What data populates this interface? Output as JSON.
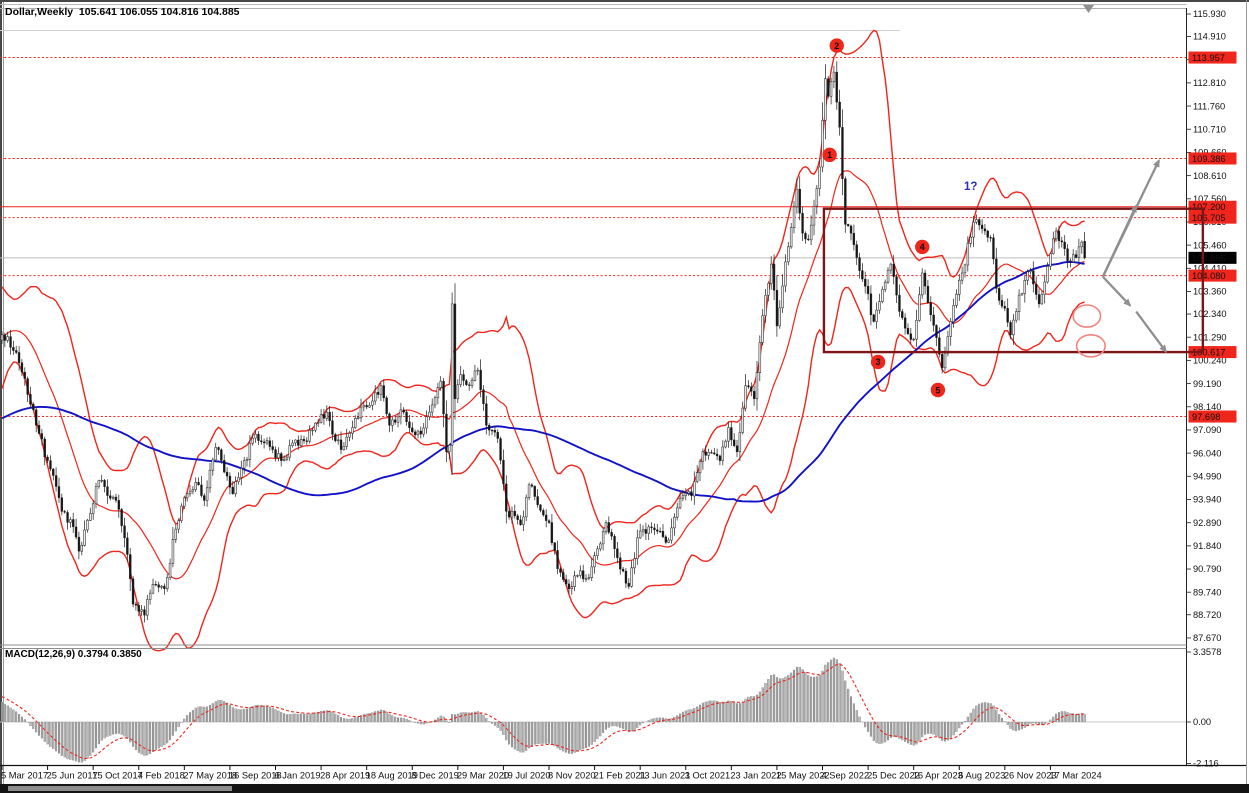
{
  "window": {
    "title_overlay": "Dollar,Weekly  105.641 106.055 104.816 104.885",
    "symbol": "Dollar",
    "timeframe": "Weekly",
    "last_ohlc_text": {
      "open": "105.641",
      "high": "106.055",
      "low": "104.816",
      "close": "104.885"
    }
  },
  "colors": {
    "red": "#f0251b",
    "dark_red": "#7d1416",
    "blue": "#1212c8",
    "gray_arrow": "#8f8f8f",
    "badge_black": "#000000",
    "hist_gray": "#6f6f6f",
    "current_price_line": "#bdbdbd",
    "ellipse_red": "#f4837e"
  },
  "chart_data": {
    "type": "candlestick",
    "title": "Dollar,Weekly",
    "main": {
      "price_axis_range": [
        87.67,
        115.93
      ],
      "price_axis_ticks": [
        "115.930",
        "114.910",
        "113.860",
        "112.810",
        "111.760",
        "110.710",
        "109.660",
        "108.610",
        "107.560",
        "106.510",
        "105.460",
        "104.410",
        "103.360",
        "102.340",
        "101.290",
        "100.240",
        "99.190",
        "98.140",
        "97.090",
        "96.040",
        "94.990",
        "93.940",
        "92.890",
        "91.840",
        "90.790",
        "89.740",
        "88.720",
        "87.670"
      ],
      "date_axis": [
        {
          "week": 0,
          "label": "5 Mar 2017"
        },
        {
          "week": 16,
          "label": "25 Jun 2017"
        },
        {
          "week": 32,
          "label": "15 Oct 2017"
        },
        {
          "week": 48,
          "label": "4 Feb 2018"
        },
        {
          "week": 64,
          "label": "27 May 2018"
        },
        {
          "week": 80,
          "label": "16 Sep 2018"
        },
        {
          "week": 96,
          "label": "6 Jan 2019"
        },
        {
          "week": 112,
          "label": "28 Apr 2019"
        },
        {
          "week": 128,
          "label": "18 Aug 2019"
        },
        {
          "week": 144,
          "label": "8 Dec 2019"
        },
        {
          "week": 160,
          "label": "29 Mar 2020"
        },
        {
          "week": 176,
          "label": "19 Jul 2020"
        },
        {
          "week": 192,
          "label": "8 Nov 2020"
        },
        {
          "week": 208,
          "label": "21 Feb 2021"
        },
        {
          "week": 224,
          "label": "13 Jun 2021"
        },
        {
          "week": 240,
          "label": "3 Oct 2021"
        },
        {
          "week": 256,
          "label": "23 Jan 2022"
        },
        {
          "week": 272,
          "label": "15 May 2022"
        },
        {
          "week": 288,
          "label": "4 Sep 2022"
        },
        {
          "week": 304,
          "label": "25 Dec 2022"
        },
        {
          "week": 320,
          "label": "16 Apr 2023"
        },
        {
          "week": 336,
          "label": "6 Aug 2023"
        },
        {
          "week": 352,
          "label": "26 Nov 2023"
        },
        {
          "week": 368,
          "label": "17 Mar 2024"
        }
      ],
      "weeks_total": 380,
      "price_path_keyframes": [
        [
          -100,
          94.8
        ],
        [
          -85,
          96.3
        ],
        [
          -63,
          99.2
        ],
        [
          -55,
          97.8
        ],
        [
          -48,
          94.7
        ],
        [
          -38,
          95.9
        ],
        [
          -30,
          95.5
        ],
        [
          -20,
          98.6
        ],
        [
          -12,
          101.5
        ],
        [
          -6,
          102.9
        ],
        [
          -2,
          100.9
        ],
        [
          0,
          101.4
        ],
        [
          5,
          100.6
        ],
        [
          9,
          98.7
        ],
        [
          12,
          97.3
        ],
        [
          16,
          95.7
        ],
        [
          21,
          93.4
        ],
        [
          25,
          92.7
        ],
        [
          27,
          91.6
        ],
        [
          30,
          93.0
        ],
        [
          34,
          94.8
        ],
        [
          38,
          94.0
        ],
        [
          40,
          93.9
        ],
        [
          43,
          92.2
        ],
        [
          46,
          89.2
        ],
        [
          50,
          88.7
        ],
        [
          53,
          90.1
        ],
        [
          57,
          89.9
        ],
        [
          61,
          92.6
        ],
        [
          65,
          94.2
        ],
        [
          69,
          94.6
        ],
        [
          71,
          93.9
        ],
        [
          75,
          96.3
        ],
        [
          79,
          95.0
        ],
        [
          81,
          94.2
        ],
        [
          85,
          95.7
        ],
        [
          89,
          96.9
        ],
        [
          92,
          96.5
        ],
        [
          95,
          96.2
        ],
        [
          98,
          95.7
        ],
        [
          102,
          96.5
        ],
        [
          106,
          96.6
        ],
        [
          110,
          97.4
        ],
        [
          114,
          97.9
        ],
        [
          117,
          96.6
        ],
        [
          119,
          96.2
        ],
        [
          123,
          97.2
        ],
        [
          127,
          98.2
        ],
        [
          130,
          98.4
        ],
        [
          133,
          99.1
        ],
        [
          136,
          97.3
        ],
        [
          140,
          98.0
        ],
        [
          144,
          97.0
        ],
        [
          147,
          96.9
        ],
        [
          150,
          97.9
        ],
        [
          154,
          99.3
        ],
        [
          156,
          96.1
        ],
        [
          157,
          96.4
        ],
        [
          158,
          102.8
        ],
        [
          159,
          98.5
        ],
        [
          161,
          99.6
        ],
        [
          164,
          99.1
        ],
        [
          167,
          99.8
        ],
        [
          170,
          97.3
        ],
        [
          174,
          96.7
        ],
        [
          177,
          93.4
        ],
        [
          180,
          93.2
        ],
        [
          182,
          92.8
        ],
        [
          185,
          94.6
        ],
        [
          188,
          93.7
        ],
        [
          192,
          92.9
        ],
        [
          195,
          90.8
        ],
        [
          199,
          89.9
        ],
        [
          202,
          90.5
        ],
        [
          206,
          90.4
        ],
        [
          209,
          91.7
        ],
        [
          212,
          92.9
        ],
        [
          216,
          91.3
        ],
        [
          220,
          90.0
        ],
        [
          223,
          92.2
        ],
        [
          227,
          92.7
        ],
        [
          231,
          92.5
        ],
        [
          234,
          92.1
        ],
        [
          238,
          94.0
        ],
        [
          242,
          94.1
        ],
        [
          246,
          96.1
        ],
        [
          250,
          96.0
        ],
        [
          252,
          95.7
        ],
        [
          255,
          97.2
        ],
        [
          258,
          96.1
        ],
        [
          261,
          99.1
        ],
        [
          264,
          98.5
        ],
        [
          268,
          103.2
        ],
        [
          270,
          104.6
        ],
        [
          272,
          101.8
        ],
        [
          275,
          104.7
        ],
        [
          279,
          108.0
        ],
        [
          281,
          106.0
        ],
        [
          283,
          105.7
        ],
        [
          287,
          109.0
        ],
        [
          289,
          113.0
        ],
        [
          290,
          112.2
        ],
        [
          292,
          113.3
        ],
        [
          294,
          110.8
        ],
        [
          296,
          106.4
        ],
        [
          298,
          106.0
        ],
        [
          300,
          104.9
        ],
        [
          303,
          103.6
        ],
        [
          306,
          102.0
        ],
        [
          308,
          102.9
        ],
        [
          312,
          104.6
        ],
        [
          314,
          103.2
        ],
        [
          317,
          101.7
        ],
        [
          320,
          101.2
        ],
        [
          323,
          104.2
        ],
        [
          326,
          102.3
        ],
        [
          330,
          99.9
        ],
        [
          333,
          102.0
        ],
        [
          337,
          104.2
        ],
        [
          341,
          106.5
        ],
        [
          344,
          106.2
        ],
        [
          347,
          105.8
        ],
        [
          349,
          103.5
        ],
        [
          352,
          102.6
        ],
        [
          354,
          101.4
        ],
        [
          357,
          103.2
        ],
        [
          361,
          104.3
        ],
        [
          364,
          102.8
        ],
        [
          367,
          104.5
        ],
        [
          370,
          106.1
        ],
        [
          373,
          105.3
        ],
        [
          375,
          104.7
        ],
        [
          377,
          104.9
        ],
        [
          379,
          105.6
        ],
        [
          380,
          104.885
        ]
      ],
      "last_candle": {
        "open": 105.641,
        "high": 106.055,
        "low": 104.816,
        "close": 104.885
      },
      "indicators": {
        "bollinger": {
          "period": 20,
          "deviation": 2,
          "color": "#f0251b"
        },
        "moving_average": {
          "period": 100,
          "color": "#1212c8"
        }
      },
      "levels": [
        {
          "value": 113.957,
          "label": "113.957",
          "style": "dashed",
          "badge": true
        },
        {
          "value": 109.386,
          "label": "109.386",
          "style": "dashed",
          "badge": true
        },
        {
          "value": 107.2,
          "label": "107.200",
          "style": "solid",
          "badge": true
        },
        {
          "value": 106.705,
          "label": "106.705",
          "style": "dashed",
          "badge": true
        },
        {
          "value": 104.08,
          "label": "104.080",
          "style": "dashed",
          "badge": true
        },
        {
          "value": 100.617,
          "label": "100.617",
          "style": "none",
          "badge": true
        },
        {
          "value": 97.698,
          "label": "97.698",
          "style": "dashed",
          "badge": true
        }
      ],
      "current_price": {
        "value": 104.885,
        "label": "104.885"
      },
      "rectangle": {
        "price_top": 107.2,
        "price_bottom": 100.617,
        "week_start": 288.5,
        "weeks_span": 133
      },
      "wave_labels": [
        {
          "n": "1",
          "week": 290.5,
          "price": 109.55
        },
        {
          "n": "2",
          "week": 293.0,
          "price": 114.5
        },
        {
          "n": "3",
          "week": 307.5,
          "price": 100.17
        },
        {
          "n": "4",
          "week": 323.0,
          "price": 105.38
        },
        {
          "n": "5",
          "week": 328.5,
          "price": 98.9
        }
      ],
      "question_label": {
        "text": "1?",
        "week": 341,
        "price": 107.9
      },
      "arrows": [
        {
          "from": [
            386.4,
            104.03
          ],
          "to": [
            406.1,
            109.3
          ]
        },
        {
          "from": [
            386.4,
            104.03
          ],
          "to": [
            398.1,
            107.25
          ]
        },
        {
          "from": [
            386.4,
            104.03
          ],
          "to": [
            396.0,
            102.72
          ]
        },
        {
          "from": [
            398.1,
            102.45
          ],
          "to": [
            408.6,
            100.63
          ]
        }
      ],
      "ellipses": [
        {
          "week": 380.8,
          "price": 102.25,
          "rx_weeks": 4.8,
          "ry_price": 0.5
        },
        {
          "week": 382.2,
          "price": 100.9,
          "rx_weeks": 5.0,
          "ry_price": 0.5
        }
      ]
    },
    "macd": {
      "label": "MACD(12,26,9) 0.3794 0.3850",
      "params": "12,26,9",
      "value": "0.3794",
      "signal": "0.3850",
      "axis_ticks": [
        "3.3578",
        "0.00",
        "-2.116"
      ],
      "axis_range": [
        -2.116,
        3.3578
      ]
    }
  }
}
